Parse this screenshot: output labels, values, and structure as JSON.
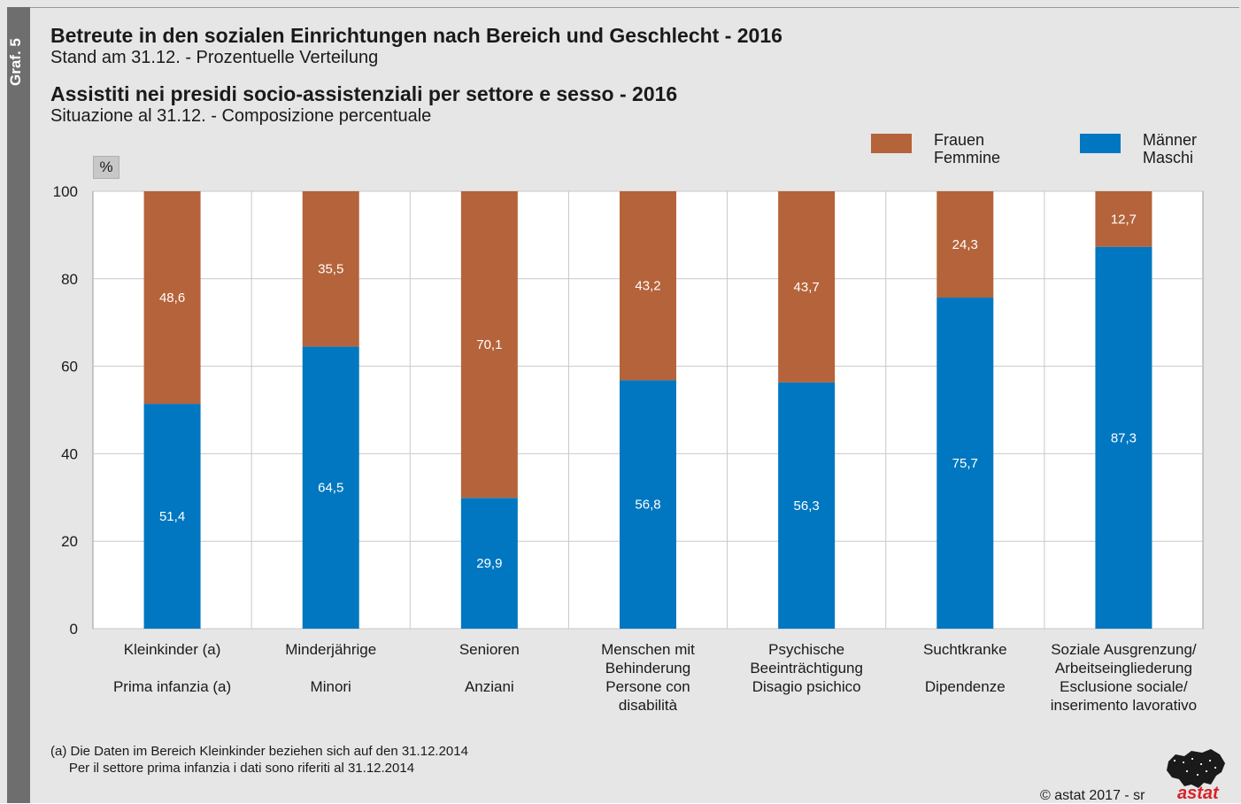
{
  "sidebar": {
    "label": "Graf. 5"
  },
  "titles": {
    "title_de": "Betreute in den sozialen Einrichtungen nach Bereich und Geschlecht - 2016",
    "subtitle_de": "Stand am 31.12. - Prozentuelle Verteilung",
    "title_it": "Assistiti nei presidi socio-assistenziali per settore e sesso - 2016",
    "subtitle_it": "Situazione al 31.12. - Composizione percentuale"
  },
  "legend": {
    "women": "Frauen\nFemmine",
    "men": "Männer\nMaschi"
  },
  "unit_label": "%",
  "colors": {
    "women": "#b5633a",
    "men": "#0077c0",
    "grid": "#c8c8c8",
    "plot_bg": "#ffffff",
    "text": "#1a1a1a"
  },
  "chart_data": {
    "type": "bar",
    "stacked": true,
    "ylim": [
      0,
      100
    ],
    "yticks": [
      0,
      20,
      40,
      60,
      80,
      100
    ],
    "categories": [
      {
        "de": "Kleinkinder (a)",
        "it": "Prima infanzia (a)"
      },
      {
        "de": "Minderjährige",
        "it": "Minori"
      },
      {
        "de": "Senioren",
        "it": "Anziani"
      },
      {
        "de": "Menschen mit\nBehinderung",
        "it": "Persone con\ndisabilità"
      },
      {
        "de": "Psychische\nBeeinträchtigung",
        "it": "Disagio psichico"
      },
      {
        "de": "Suchtkranke",
        "it": "Dipendenze"
      },
      {
        "de": "Soziale Ausgrenzung/\nArbeitseingliederung",
        "it": "Esclusione sociale/\ninserimento lavorativo"
      }
    ],
    "series": [
      {
        "name": "Männer / Maschi",
        "color": "#0077c0",
        "values": [
          51.4,
          64.5,
          29.9,
          56.8,
          56.3,
          75.7,
          87.3
        ],
        "labels": [
          "51,4",
          "64,5",
          "29,9",
          "56,8",
          "56,3",
          "75,7",
          "87,3"
        ]
      },
      {
        "name": "Frauen / Femmine",
        "color": "#b5633a",
        "values": [
          48.6,
          35.5,
          70.1,
          43.2,
          43.7,
          24.3,
          12.7
        ],
        "labels": [
          "48,6",
          "35,5",
          "70,1",
          "43,2",
          "43,7",
          "24,3",
          "12,7"
        ]
      }
    ]
  },
  "footnote": "(a) Die Daten im Bereich Kleinkinder beziehen sich auf den 31.12.2014\n     Per il settore prima infanzia i dati sono riferiti al 31.12.2014",
  "copyright": "© astat 2017 - sr",
  "logo": {
    "text": "astat",
    "icon": "astat-map-logo-icon"
  }
}
